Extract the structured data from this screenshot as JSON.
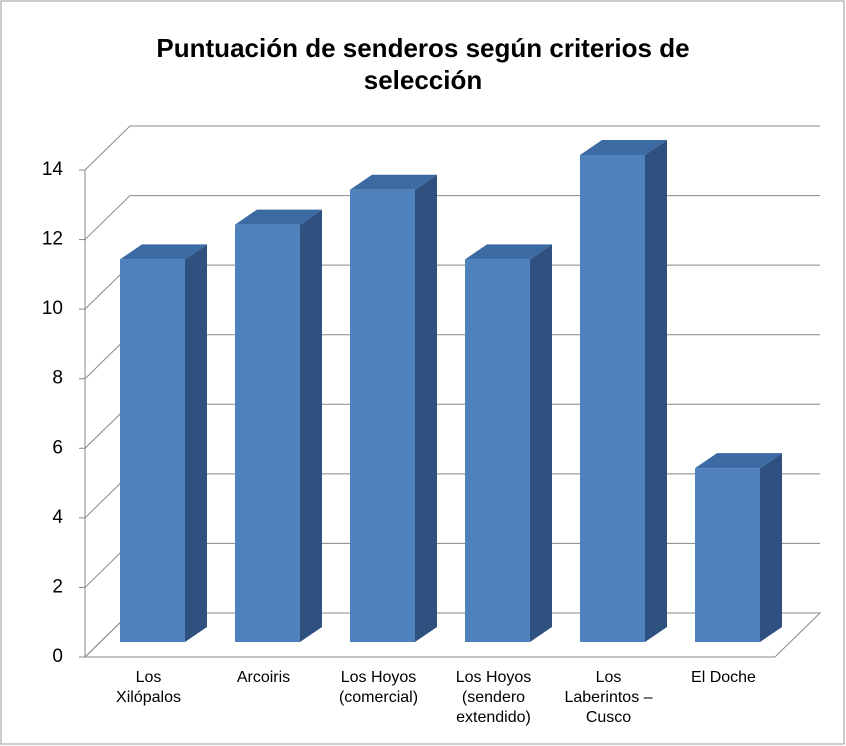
{
  "chart_data": {
    "type": "bar3d",
    "title": "Puntuación de senderos según criterios de selección",
    "categories": [
      "Los Xilópalos",
      "Arcoiris",
      "Los Hoyos (comercial)",
      "Los Hoyos (sendero extendido)",
      "Los Laberintos – Cusco",
      "El Doche"
    ],
    "values": [
      11,
      12,
      13,
      11,
      14,
      5
    ],
    "color": "#4f81bd",
    "ylim": [
      0,
      14
    ],
    "yticks": [
      0,
      2,
      4,
      6,
      8,
      10,
      12,
      14
    ],
    "grid": true
  }
}
